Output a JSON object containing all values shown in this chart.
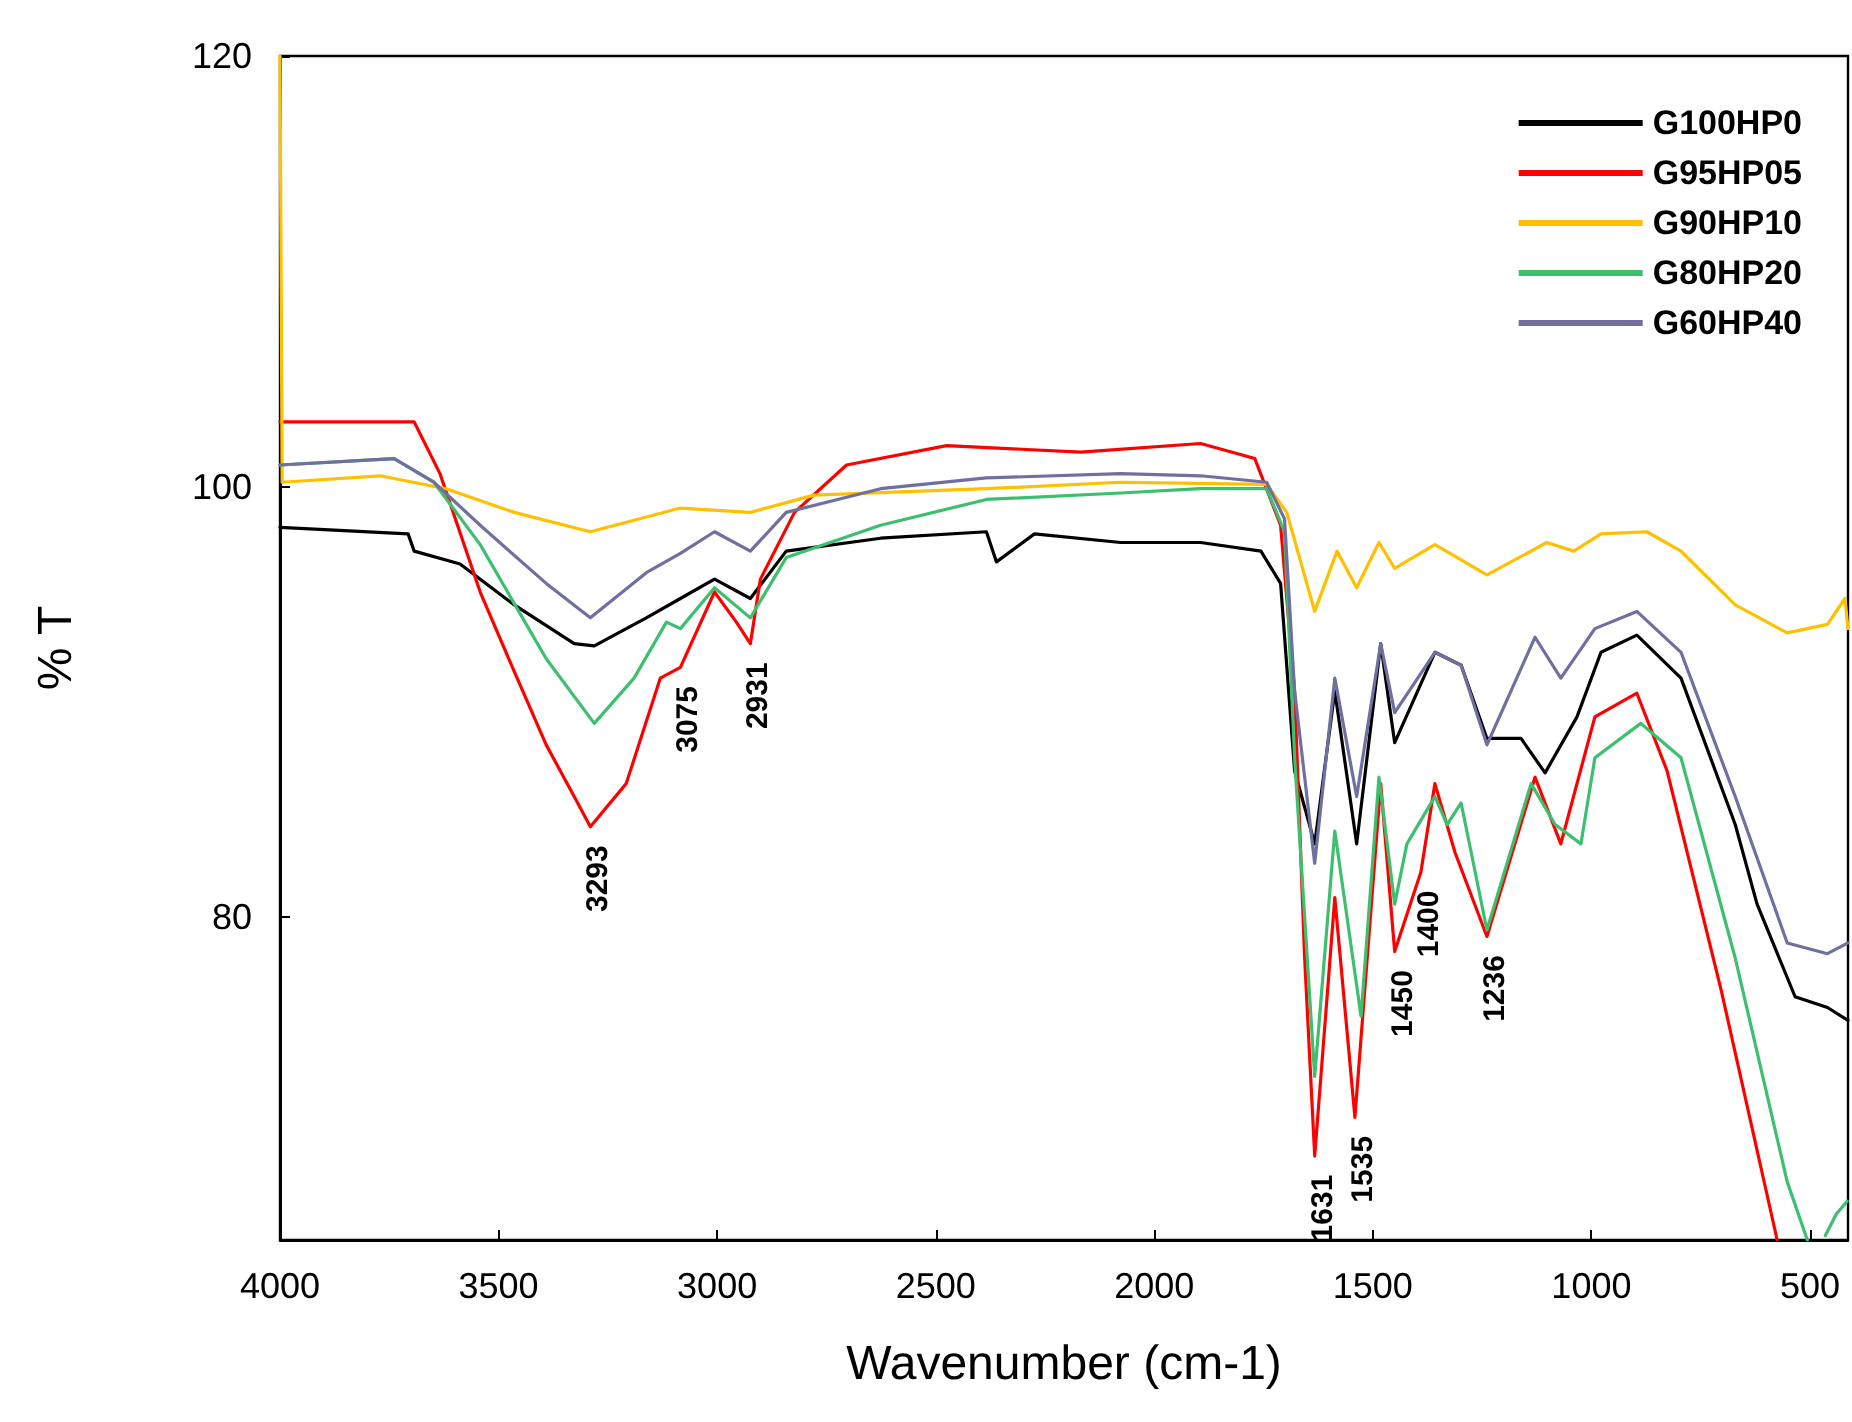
{
  "chart_data": {
    "type": "line",
    "xlabel": "Wavenumber (cm-1)",
    "ylabel": "% T",
    "xlim": [
      4000,
      413
    ],
    "xticks": [
      4000,
      3500,
      3000,
      2500,
      2000,
      1500,
      1000,
      500
    ],
    "ylim": [
      65,
      120
    ],
    "yticks": [
      80,
      100,
      120
    ],
    "grid": false,
    "legend": "top right",
    "line_style": "solid",
    "series": [
      {
        "name": "G100HP0",
        "color": "#000000",
        "x": [
          4000,
          3707,
          3693,
          3588,
          3464,
          3327,
          3281,
          3162,
          3084,
          3006,
          2924,
          2842,
          2626,
          2384,
          2361,
          2274,
          2077,
          1894,
          1756,
          1711,
          1679,
          1633,
          1587,
          1537,
          1482,
          1450,
          1358,
          1298,
          1239,
          1161,
          1106,
          1033,
          978,
          896,
          795,
          671,
          621,
          534,
          460,
          413
        ],
        "values": [
          98.1,
          97.8,
          97,
          96.4,
          94.5,
          92.7,
          92.6,
          93.9,
          94.8,
          95.7,
          94.8,
          97,
          97.6,
          97.9,
          96.5,
          97.8,
          97.4,
          97.4,
          97,
          95.5,
          86.8,
          83.4,
          90.5,
          83.4,
          92.7,
          88.1,
          92.3,
          91.7,
          88.3,
          88.3,
          86.7,
          89.3,
          92.3,
          93.1,
          91.1,
          84.3,
          80.6,
          76.3,
          75.8,
          75.2
        ]
      },
      {
        "name": "G95HP05",
        "color": "#ff0000",
        "x": [
          4000,
          3693,
          3634,
          3542,
          3464,
          3391,
          3327,
          3290,
          3208,
          3130,
          3084,
          3006,
          2956,
          2924,
          2901,
          2823,
          2704,
          2475,
          2168,
          1894,
          1770,
          1711,
          1679,
          1656,
          1633,
          1587,
          1541,
          1482,
          1450,
          1390,
          1358,
          1312,
          1239,
          1129,
          1070,
          992,
          896,
          827,
          703,
          575
        ],
        "values": [
          103,
          103,
          100.6,
          95.1,
          91.4,
          88,
          85.6,
          84.2,
          86.2,
          91.1,
          91.6,
          95.1,
          93.7,
          92.7,
          95.7,
          98.8,
          101,
          101.9,
          101.6,
          102,
          101.3,
          98.2,
          90.5,
          78.1,
          68.9,
          80.9,
          70.7,
          86.2,
          78.4,
          82.1,
          86.2,
          83,
          79.1,
          86.5,
          83.4,
          89.3,
          90.4,
          86.8,
          76.6,
          65
        ]
      },
      {
        "name": "G90HP10",
        "color": "#ffc000",
        "x": [
          4000,
          3995,
          3771,
          3620,
          3464,
          3290,
          3084,
          2924,
          2778,
          2384,
          2077,
          1743,
          1697,
          1633,
          1582,
          1537,
          1486,
          1450,
          1358,
          1239,
          1102,
          1040,
          978,
          873,
          795,
          671,
          552,
          460,
          420,
          413
        ],
        "values": [
          120,
          100.2,
          100.5,
          99.9,
          98.8,
          97.9,
          99,
          98.8,
          99.6,
          99.9,
          100.2,
          100.1,
          98.8,
          94.2,
          97,
          95.3,
          97.4,
          96.2,
          97.3,
          95.9,
          97.4,
          97,
          97.8,
          97.9,
          97,
          94.5,
          93.2,
          93.6,
          94.8,
          93.4
        ]
      },
      {
        "name": "G80HP20",
        "color": "#3cbf6e",
        "x": [
          4000,
          3739,
          3648,
          3542,
          3391,
          3281,
          3190,
          3116,
          3084,
          3006,
          2924,
          2842,
          2626,
          2384,
          2077,
          1894,
          1743,
          1702,
          1679,
          1633,
          1587,
          1527,
          1486,
          1450,
          1422,
          1358,
          1330,
          1298,
          1239,
          1138,
          1083,
          1024,
          992,
          887,
          795,
          671,
          552,
          506,
          485,
          465,
          440,
          415
        ],
        "values": [
          101,
          101.3,
          100.2,
          97.3,
          92,
          89,
          91.1,
          93.7,
          93.4,
          95.3,
          93.9,
          96.7,
          98.2,
          99.4,
          99.7,
          99.9,
          99.9,
          97.9,
          87.4,
          72.6,
          84,
          75.4,
          86.5,
          80.6,
          83.4,
          85.6,
          84.3,
          85.3,
          79.4,
          86.2,
          84.3,
          83.4,
          87.4,
          89,
          87.4,
          78.1,
          67.7,
          65,
          null,
          65.2,
          66.2,
          66.8
        ]
      },
      {
        "name": "G60HP40",
        "color": "#6f6fa0",
        "x": [
          4000,
          3739,
          3648,
          3542,
          3391,
          3290,
          3162,
          3084,
          3006,
          2924,
          2842,
          2626,
          2384,
          2077,
          1894,
          1743,
          1702,
          1679,
          1633,
          1587,
          1537,
          1482,
          1450,
          1358,
          1298,
          1239,
          1129,
          1070,
          992,
          896,
          795,
          671,
          552,
          460,
          413
        ],
        "values": [
          101,
          101.3,
          100.2,
          98.2,
          95.5,
          93.9,
          96,
          96.9,
          97.9,
          97,
          98.8,
          99.9,
          100.4,
          100.6,
          100.5,
          100.2,
          98.5,
          90.5,
          82.5,
          91.1,
          85.6,
          92.7,
          89.5,
          92.3,
          91.7,
          88,
          93,
          91.1,
          93.4,
          94.2,
          92.3,
          85.6,
          78.8,
          78.3,
          78.8
        ]
      }
    ],
    "annotations": [
      {
        "text": "3293",
        "x": 3290,
        "y": 84.2
      },
      {
        "text": "3075",
        "x": 3084,
        "y": 91.6
      },
      {
        "text": "2931",
        "x": 2924,
        "y": 92.7
      },
      {
        "text": "1631",
        "x": 1633,
        "y": 68.9
      },
      {
        "text": "1535",
        "x": 1541,
        "y": 70.7
      },
      {
        "text": "1450",
        "x": 1450,
        "y": 78.4
      },
      {
        "text": "1400",
        "x": 1390,
        "y": 82.1
      },
      {
        "text": "1236",
        "x": 1239,
        "y": 79.1
      }
    ]
  }
}
